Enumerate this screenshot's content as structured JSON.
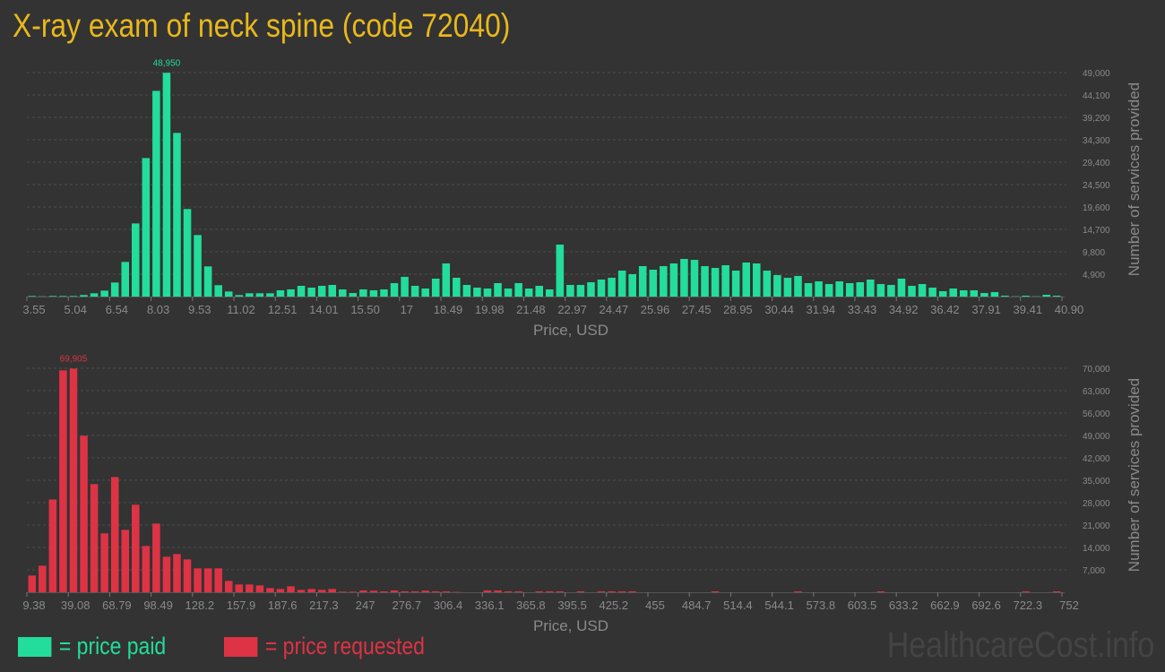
{
  "title": "X-ray exam of neck spine (code 72040)",
  "colors": {
    "background": "#333333",
    "title": "#e9b81c",
    "paid": "#22dd9b",
    "requested": "#dd3344",
    "text": "#8a8a8a"
  },
  "legend": {
    "paid_label": "= price paid",
    "requested_label": "= price requested"
  },
  "watermark": "HealthcareCost.info",
  "chart_data": [
    {
      "type": "bar",
      "series": [
        {
          "name": "price paid",
          "color": "#22dd9b"
        }
      ],
      "xlabel": "Price, USD",
      "ylabel": "Number of services provided",
      "x_tick_labels": [
        "3.55",
        "5.04",
        "6.54",
        "8.03",
        "9.53",
        "11.02",
        "12.51",
        "14.01",
        "15.50",
        "17",
        "18.49",
        "19.98",
        "21.48",
        "22.97",
        "24.47",
        "25.96",
        "27.45",
        "28.95",
        "30.44",
        "31.94",
        "33.43",
        "34.92",
        "36.42",
        "37.91",
        "39.41",
        "40.90"
      ],
      "y_tick_labels": [
        "4,900",
        "9,800",
        "14,700",
        "19,600",
        "24,500",
        "29,400",
        "34,300",
        "39,200",
        "44,100",
        "49,000"
      ],
      "ylim": [
        0,
        49000
      ],
      "grid": true,
      "peak_label": "48,950",
      "values": [
        130,
        60,
        130,
        130,
        130,
        330,
        720,
        1300,
        3080,
        7580,
        16000,
        30300,
        45000,
        48950,
        35800,
        19150,
        13460,
        6600,
        2490,
        1110,
        330,
        720,
        720,
        720,
        1370,
        1570,
        2350,
        1960,
        2350,
        2550,
        1570,
        780,
        1570,
        1370,
        1570,
        2940,
        4310,
        2350,
        1760,
        3920,
        7250,
        4120,
        2550,
        1960,
        1760,
        2940,
        1760,
        2940,
        1760,
        2350,
        1570,
        11370,
        2550,
        2550,
        3140,
        3720,
        4120,
        5680,
        4900,
        6660,
        5880,
        6660,
        7250,
        8230,
        8030,
        6660,
        6270,
        6860,
        5680,
        7450,
        7250,
        5680,
        4700,
        4110,
        4510,
        2940,
        3330,
        2740,
        3330,
        2940,
        3140,
        3720,
        2740,
        2550,
        3920,
        2350,
        2740,
        1960,
        1180,
        1760,
        1370,
        1370,
        780,
        980,
        200,
        60,
        200,
        60,
        390,
        200
      ]
    },
    {
      "type": "bar",
      "series": [
        {
          "name": "price requested",
          "color": "#dd3344"
        }
      ],
      "xlabel": "Price, USD",
      "ylabel": "Number of services provided",
      "x_tick_labels": [
        "9.38",
        "39.08",
        "68.79",
        "98.49",
        "128.2",
        "157.9",
        "187.6",
        "217.3",
        "247",
        "276.7",
        "306.4",
        "336.1",
        "365.8",
        "395.5",
        "425.2",
        "455",
        "484.7",
        "514.4",
        "544.1",
        "573.8",
        "603.5",
        "633.2",
        "662.9",
        "692.6",
        "722.3",
        "752"
      ],
      "y_tick_labels": [
        "7,000",
        "14,000",
        "21,000",
        "28,000",
        "35,000",
        "42,000",
        "49,000",
        "56,000",
        "63,000",
        "70,000"
      ],
      "ylim": [
        0,
        70000
      ],
      "grid": true,
      "peak_label": "69,905",
      "values": [
        5230,
        8310,
        29000,
        69350,
        69905,
        48900,
        33800,
        18400,
        36000,
        19500,
        27350,
        14470,
        21470,
        11100,
        11950,
        10270,
        7470,
        7470,
        7470,
        3550,
        2430,
        2430,
        2150,
        1310,
        1030,
        1870,
        750,
        1030,
        750,
        1030,
        190,
        190,
        560,
        500,
        280,
        560,
        280,
        280,
        500,
        280,
        280,
        100,
        0,
        0,
        560,
        560,
        280,
        280,
        0,
        280,
        280,
        280,
        0,
        280,
        0,
        280,
        280,
        280,
        280,
        0,
        0,
        0,
        0,
        0,
        0,
        0,
        280,
        0,
        0,
        0,
        0,
        0,
        0,
        0,
        280,
        0,
        0,
        0,
        0,
        0,
        0,
        0,
        280,
        0,
        0,
        0,
        0,
        0,
        0,
        0,
        0,
        0,
        0,
        0,
        0,
        0,
        280,
        0,
        0,
        280
      ]
    }
  ]
}
